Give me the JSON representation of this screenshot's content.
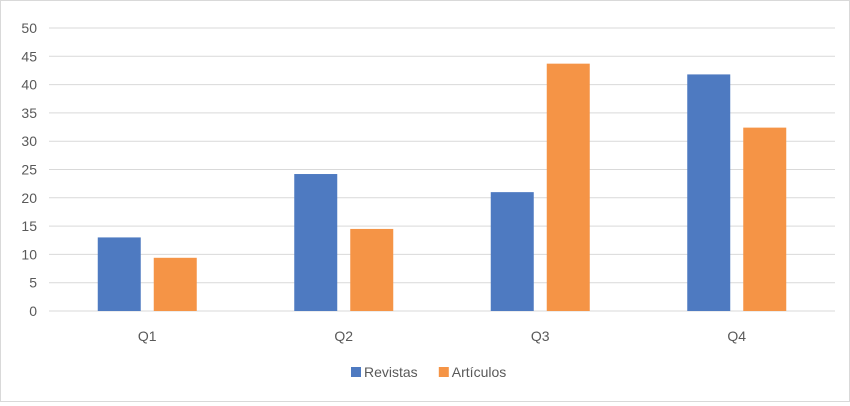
{
  "chart_data": {
    "type": "bar",
    "categories": [
      "Q1",
      "Q2",
      "Q3",
      "Q4"
    ],
    "series": [
      {
        "name": "Revistas",
        "values": [
          13,
          24.2,
          21,
          41.8
        ],
        "color": "#4e7ac1"
      },
      {
        "name": "Artículos",
        "values": [
          9.4,
          14.5,
          43.7,
          32.4
        ],
        "color": "#f59446"
      }
    ],
    "title": "",
    "xlabel": "",
    "ylabel": "",
    "ylim": [
      0,
      50
    ],
    "yticks": [
      "0",
      "5",
      "10",
      "15",
      "20",
      "25",
      "30",
      "35",
      "40",
      "45",
      "50"
    ],
    "grid": true,
    "gridColor": "#d9d9d9",
    "legend": "bottom"
  }
}
